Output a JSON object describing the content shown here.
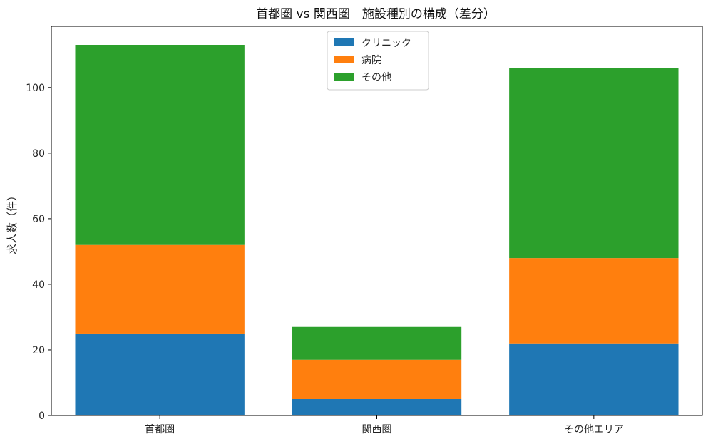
{
  "chart_data": {
    "type": "bar",
    "stacked": true,
    "title": "首都圏 vs 関西圏｜施設種別の構成（差分）",
    "xlabel": "",
    "ylabel": "求人数（件）",
    "categories": [
      "首都圏",
      "関西圏",
      "その他エリア"
    ],
    "series": [
      {
        "name": "クリニック",
        "values": [
          25,
          5,
          22
        ],
        "color": "#1f77b4"
      },
      {
        "name": "病院",
        "values": [
          27,
          12,
          26
        ],
        "color": "#ff7f0e"
      },
      {
        "name": "その他",
        "values": [
          61,
          10,
          58
        ],
        "color": "#2ca02c"
      }
    ],
    "ylim": [
      0,
      118.65
    ],
    "yticks": [
      0,
      20,
      40,
      60,
      80,
      100
    ],
    "grid": false,
    "legend": "upper center"
  }
}
